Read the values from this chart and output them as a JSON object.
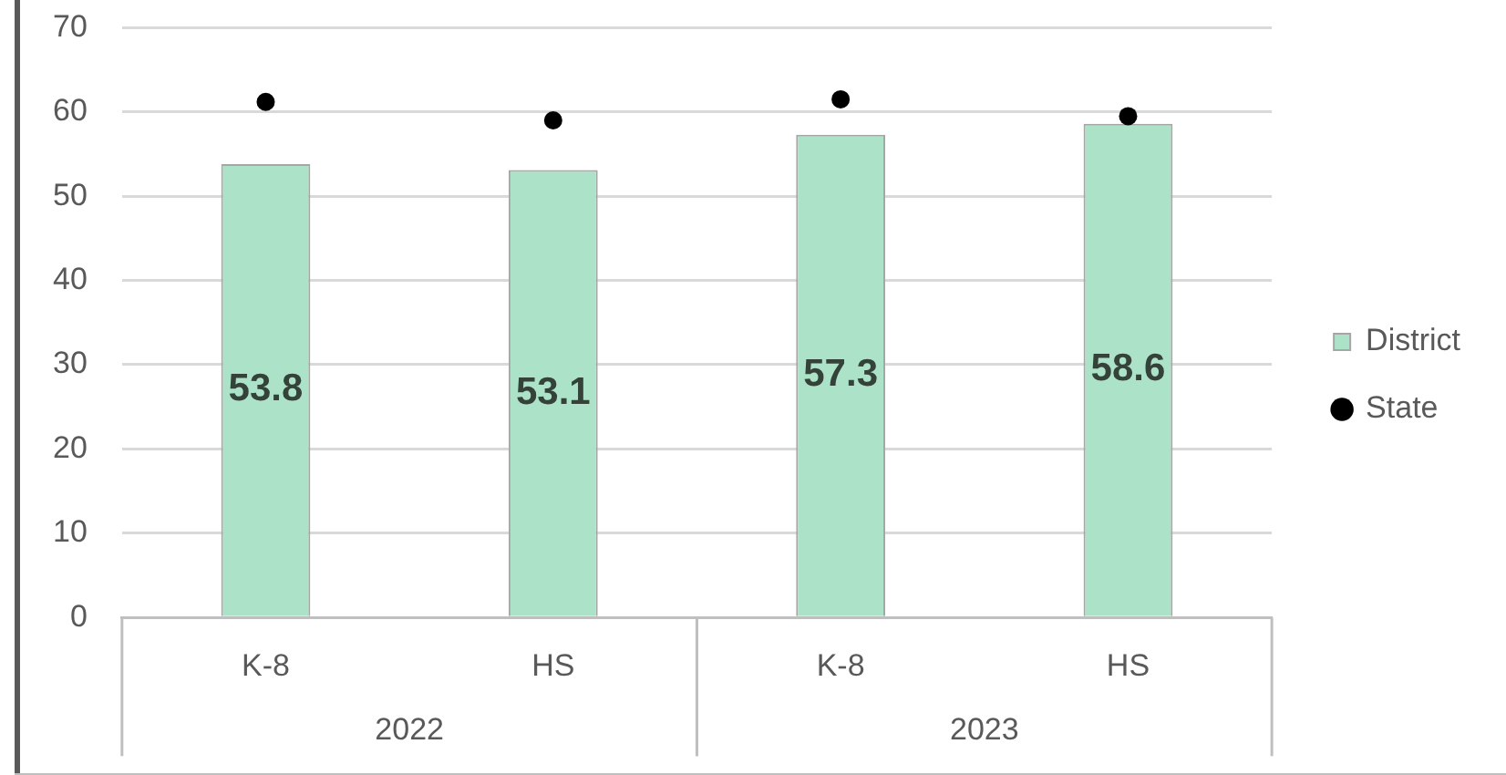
{
  "chart_data": {
    "type": "bar",
    "categories": [
      "K-8",
      "HS",
      "K-8",
      "HS"
    ],
    "series": [
      {
        "name": "District",
        "color": "#ace3c8",
        "values": [
          53.8,
          53.1,
          57.3,
          58.6
        ],
        "value_labels": [
          "53.8",
          "53.1",
          "57.3",
          "58.6"
        ]
      },
      {
        "name": "State",
        "type": "scatter",
        "color": "#000000",
        "marker": "circle",
        "values": [
          61.2,
          59,
          61.5,
          59.5
        ]
      }
    ],
    "ylim": [
      0,
      70
    ],
    "yticks": [
      0,
      10,
      20,
      30,
      40,
      50,
      60,
      70
    ],
    "grid": "y",
    "legend": "right",
    "annotations": [
      "2022",
      "2023"
    ]
  }
}
